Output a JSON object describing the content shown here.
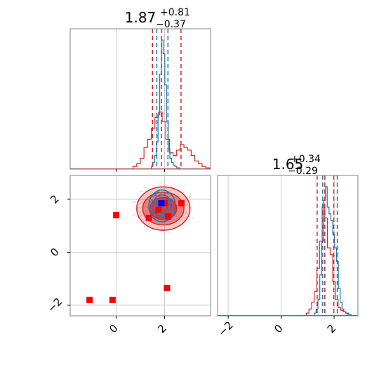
{
  "chart_data": {
    "type": "corner",
    "colors": {
      "red": "#d62728",
      "blue": "#1f77b4",
      "marker_blue": "#0000ff",
      "grid": "#cccccc",
      "frame": "#808080"
    },
    "panels": [
      {
        "id": "hist-x",
        "type": "histogram",
        "title": {
          "main": "1.87",
          "sup": "+0.81",
          "sub": "−0.37"
        },
        "xlim": [
          -1.9,
          3.9
        ],
        "grid_x": [
          0,
          2
        ],
        "quantile_lines": {
          "red": [
            1.5,
            1.87,
            2.68
          ],
          "blue": [
            1.68,
            2.14
          ]
        },
        "series": [
          {
            "name": "red",
            "color": "#d62728",
            "bins": [
              0.7,
              0.85,
              1.0,
              1.15,
              1.3,
              1.45,
              1.6,
              1.75,
              1.9,
              2.05,
              2.2,
              2.35,
              2.5,
              2.65,
              2.8,
              2.95,
              3.1,
              3.25,
              3.4,
              3.55,
              3.7,
              3.85
            ],
            "counts": [
              0.02,
              0.04,
              0.08,
              0.16,
              0.22,
              0.3,
              0.38,
              0.42,
              0.35,
              0.22,
              0.12,
              0.1,
              0.14,
              0.18,
              0.16,
              0.14,
              0.1,
              0.06,
              0.04,
              0.02,
              0.01
            ]
          },
          {
            "name": "blue",
            "color": "#1f77b4",
            "bins": [
              1.45,
              1.52,
              1.59,
              1.66,
              1.73,
              1.8,
              1.87,
              1.94,
              2.01,
              2.08,
              2.15,
              2.22,
              2.29,
              2.36,
              2.43,
              2.5,
              2.57,
              2.64
            ],
            "counts": [
              0.02,
              0.05,
              0.1,
              0.2,
              0.4,
              0.7,
              0.95,
              0.85,
              0.62,
              0.35,
              0.15,
              0.08,
              0.05,
              0.03,
              0.02,
              0.01,
              0.01
            ]
          }
        ]
      },
      {
        "id": "scatter-xy",
        "type": "scatter",
        "xlim": [
          -1.9,
          3.9
        ],
        "ylim": [
          -2.4,
          2.9
        ],
        "xticks": [
          0,
          2
        ],
        "yticks": [
          -2,
          0,
          2
        ],
        "xtick_labels": [
          "0",
          "2"
        ],
        "ytick_labels": [
          "−2",
          "0",
          "2"
        ],
        "red_markers": [
          {
            "x": 0.0,
            "y": 1.4
          },
          {
            "x": -1.1,
            "y": -1.8
          },
          {
            "x": -0.15,
            "y": -1.8
          },
          {
            "x": 2.1,
            "y": -1.35
          },
          {
            "x": 1.35,
            "y": 1.3
          },
          {
            "x": 1.75,
            "y": 1.6
          },
          {
            "x": 2.0,
            "y": 1.85
          },
          {
            "x": 2.7,
            "y": 1.85
          },
          {
            "x": 2.15,
            "y": 1.35
          }
        ],
        "blue_markers": [
          {
            "x": 1.87,
            "y": 1.85
          }
        ],
        "red_density": {
          "center": [
            1.95,
            1.65
          ],
          "levels": [
            {
              "rx": 1.1,
              "ry": 0.82,
              "opacity": 0.25
            },
            {
              "rx": 0.85,
              "ry": 0.62,
              "opacity": 0.45
            },
            {
              "rx": 0.55,
              "ry": 0.42,
              "opacity": 0.7
            }
          ]
        },
        "blue_density": {
          "center": [
            1.9,
            1.75
          ],
          "levels": [
            {
              "rx": 0.55,
              "ry": 0.6
            },
            {
              "rx": 0.38,
              "ry": 0.42
            },
            {
              "rx": 0.22,
              "ry": 0.25
            }
          ]
        }
      },
      {
        "id": "hist-y",
        "type": "histogram",
        "title": {
          "main": "1.65",
          "sup": "+0.34",
          "sub": "−0.29"
        },
        "xlim": [
          -2.4,
          2.9
        ],
        "xticks": [
          -2,
          0,
          2
        ],
        "xtick_labels": [
          "−2",
          "0",
          "2"
        ],
        "grid_x": [
          -2,
          0,
          2
        ],
        "quantile_lines": {
          "red": [
            1.36,
            1.65,
            1.99
          ],
          "blue": [
            1.57,
            2.12
          ]
        },
        "series": [
          {
            "name": "red",
            "color": "#d62728",
            "bins": [
              0.95,
              1.05,
              1.15,
              1.25,
              1.35,
              1.45,
              1.55,
              1.65,
              1.75,
              1.85,
              1.95,
              2.05,
              2.15,
              2.25,
              2.35,
              2.45,
              2.55,
              2.65
            ],
            "counts": [
              0.02,
              0.05,
              0.1,
              0.18,
              0.35,
              0.55,
              0.8,
              0.72,
              0.5,
              0.45,
              0.25,
              0.12,
              0.06,
              0.04,
              0.03,
              0.02,
              0.01
            ]
          },
          {
            "name": "blue",
            "color": "#1f77b4",
            "bins": [
              1.25,
              1.32,
              1.39,
              1.46,
              1.53,
              1.6,
              1.67,
              1.74,
              1.81,
              1.88,
              1.95,
              2.02,
              2.09,
              2.16,
              2.23,
              2.3,
              2.37,
              2.44,
              2.51,
              2.58,
              2.65
            ],
            "counts": [
              0.02,
              0.05,
              0.12,
              0.3,
              0.55,
              0.85,
              0.95,
              0.8,
              0.75,
              0.7,
              0.6,
              0.5,
              0.4,
              0.2,
              0.1,
              0.05,
              0.03,
              0.02,
              0.01,
              0.01
            ]
          }
        ]
      }
    ]
  }
}
